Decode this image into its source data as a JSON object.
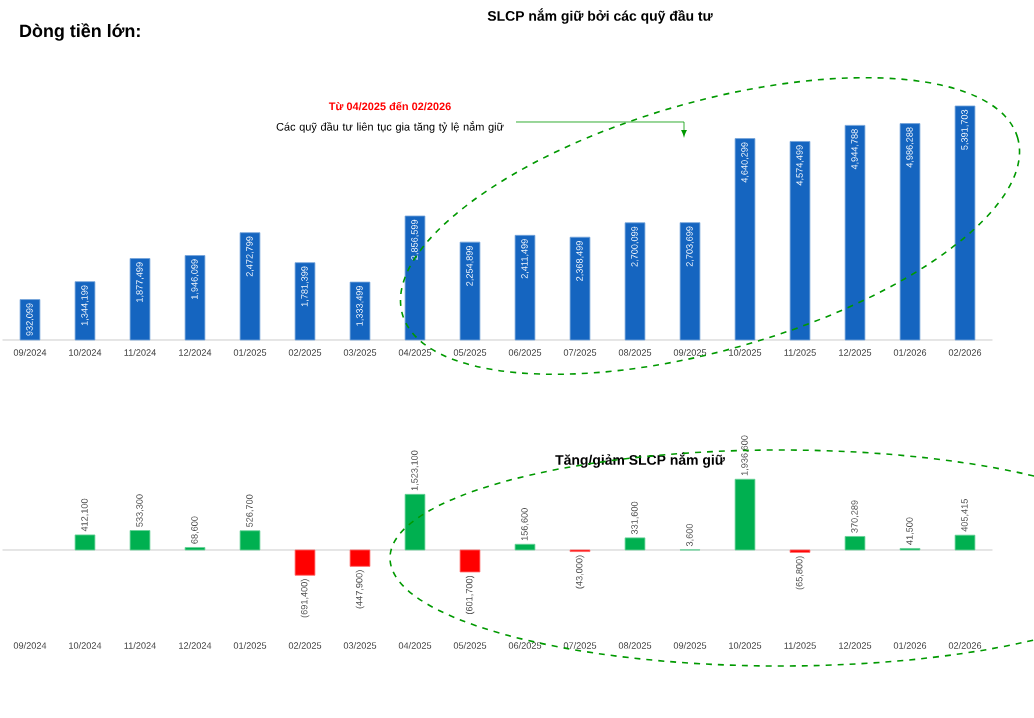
{
  "chart_data": [
    {
      "type": "bar",
      "title": "SLCP nắm giữ bởi các quỹ đầu tư",
      "categories": [
        "09/2024",
        "10/2024",
        "11/2024",
        "12/2024",
        "01/2025",
        "02/2025",
        "03/2025",
        "04/2025",
        "05/2025",
        "06/2025",
        "07/2025",
        "08/2025",
        "09/2025",
        "10/2025",
        "11/2025",
        "12/2025",
        "01/2026",
        "02/2026"
      ],
      "values": [
        932099,
        1344199,
        1877499,
        1946099,
        2472799,
        1781399,
        1333499,
        2856599,
        2254899,
        2411499,
        2368499,
        2700099,
        2703699,
        4640299,
        4574499,
        4944788,
        4986288,
        5391703
      ],
      "value_labels": [
        "932,099",
        "1,344,199",
        "1,877,499",
        "1,946,099",
        "2,472,799",
        "1,781,399",
        "1,333,499",
        "2,856,599",
        "2,254,899",
        "2,411,499",
        "2,368,499",
        "2,700,099",
        "2,703,699",
        "4,640,299",
        "4,574,499",
        "4,944,788",
        "4,986,288",
        "5,391,703"
      ],
      "color": "#1565c0",
      "annotations": [
        "Dòng tiền lớn:",
        "Từ 04/2025 đến 02/2026",
        "Các quỹ đầu tư liên tục gia tăng tỷ lệ nắm giữ"
      ]
    },
    {
      "type": "bar",
      "title": "Tăng/giảm SLCP nắm giữ",
      "categories": [
        "09/2024",
        "10/2024",
        "11/2024",
        "12/2024",
        "01/2025",
        "02/2025",
        "03/2025",
        "04/2025",
        "05/2025",
        "06/2025",
        "07/2025",
        "08/2025",
        "09/2025",
        "10/2025",
        "11/2025",
        "12/2025",
        "01/2026",
        "02/2026"
      ],
      "values": [
        null,
        412100,
        533300,
        68600,
        526700,
        -691400,
        -447900,
        1523100,
        -601700,
        156600,
        -43000,
        331600,
        3600,
        1936600,
        -65800,
        370289,
        41500,
        405415
      ],
      "value_labels": [
        null,
        "412,100",
        "533,300",
        "68,600",
        "526,700",
        "(691,400)",
        "(447,900)",
        "1,523,100",
        "(601,700)",
        "156,600",
        "(43,000)",
        "331,600",
        "3,600",
        "1,936,600",
        "(65,800)",
        "370,289",
        "41,500",
        "405,415"
      ],
      "colors": [
        "#00b050",
        "#00b050",
        "#00b050",
        "#00b050",
        "#00b050",
        "#ff0000",
        "#ff0000",
        "#00b050",
        "#ff0000",
        "#00b050",
        "#ff0000",
        "#00b050",
        "#00b050",
        "#00b050",
        "#ff0000",
        "#00b050",
        "#00b050",
        "#00b050"
      ]
    }
  ]
}
